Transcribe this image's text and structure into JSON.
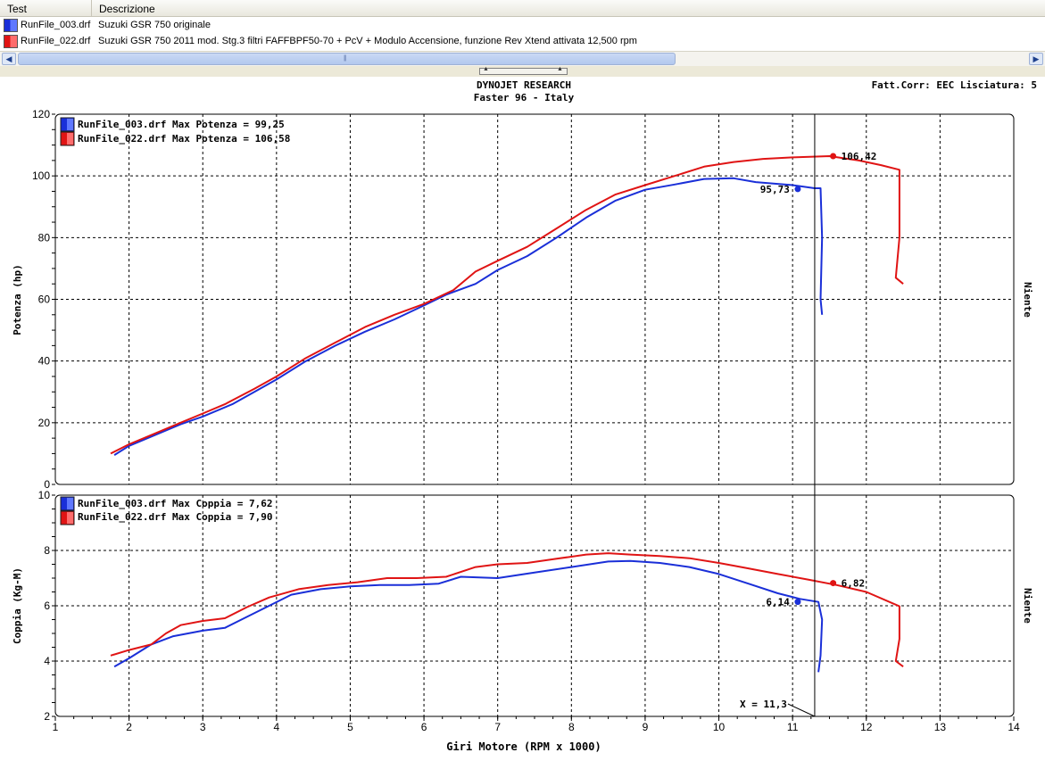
{
  "grid": {
    "columns": [
      "Test",
      "Descrizione"
    ],
    "rows": [
      {
        "file": "RunFile_003.drf",
        "description": "Suzuki GSR 750 originale",
        "color": "#1a2fd8"
      },
      {
        "file": "RunFile_022.drf",
        "description": "Suzuki GSR 750 2011 mod. Stg.3 filtri FAFFBPF50-70 + PcV + Modulo Accensione, funzione Rev Xtend attivata 12,500 rpm",
        "color": "#e01414"
      }
    ]
  },
  "header": {
    "title": "DYNOJET RESEARCH",
    "subtitle": "Faster 96 - Italy",
    "correction": "Fatt.Corr: EEC  Lisciatura: 5"
  },
  "chart_data": [
    {
      "type": "line",
      "ylabel": "Potenza (hp)",
      "right_label": "Niente",
      "xlim": [
        1,
        14
      ],
      "ylim": [
        0,
        120
      ],
      "yticks": [
        0,
        20,
        40,
        60,
        80,
        100,
        120
      ],
      "grid": true,
      "legend": "top-left",
      "legend_entries": [
        "RunFile_003.drf Max Potenza = 99,25",
        "RunFile_022.drf Max Potenza = 106,58"
      ],
      "series": [
        {
          "name": "RunFile_003.drf",
          "color": "#1a2fd8",
          "x": [
            1.8,
            2.0,
            2.3,
            2.7,
            3.0,
            3.4,
            3.7,
            4.0,
            4.4,
            4.8,
            5.2,
            5.6,
            6.0,
            6.3,
            6.7,
            7.0,
            7.4,
            7.8,
            8.2,
            8.6,
            9.0,
            9.4,
            9.8,
            10.2,
            10.5,
            11.0,
            11.3,
            11.38,
            11.4,
            11.38,
            11.4
          ],
          "y": [
            9.5,
            12.5,
            15.5,
            19.5,
            22,
            26,
            30,
            34,
            40,
            45,
            49.5,
            53.5,
            58,
            61.5,
            65,
            69.5,
            74,
            80,
            86.5,
            92,
            95.5,
            97.2,
            99,
            99.25,
            98,
            97,
            96,
            96,
            80,
            60,
            55
          ]
        },
        {
          "name": "RunFile_022.drf",
          "color": "#e01414",
          "x": [
            1.75,
            2.0,
            2.3,
            2.7,
            3.0,
            3.3,
            3.7,
            4.0,
            4.4,
            4.8,
            5.2,
            5.6,
            6.0,
            6.4,
            6.7,
            7.0,
            7.4,
            7.8,
            8.2,
            8.6,
            9.0,
            9.4,
            9.8,
            10.2,
            10.6,
            11.0,
            11.5,
            11.9,
            12.2,
            12.45,
            12.45,
            12.4,
            12.45,
            12.5
          ],
          "y": [
            10,
            13,
            16,
            20,
            23,
            26,
            31,
            35,
            41,
            46,
            51,
            55,
            58.5,
            63,
            69,
            72.5,
            77,
            83,
            89,
            94,
            97,
            100,
            103,
            104.5,
            105.5,
            106,
            106.42,
            105,
            103.5,
            102,
            80,
            67,
            66,
            65
          ]
        }
      ],
      "markers": [
        {
          "series": "RunFile_003.drf",
          "x": 11.07,
          "y": 95.73,
          "label": "95,73"
        },
        {
          "series": "RunFile_022.drf",
          "x": 11.55,
          "y": 106.42,
          "label": "106,42"
        }
      ]
    },
    {
      "type": "line",
      "xlabel": "Giri Motore (RPM x 1000)",
      "ylabel": "Coppia (Kg-M)",
      "right_label": "Niente",
      "xlim": [
        1,
        14
      ],
      "ylim": [
        2,
        10
      ],
      "xticks": [
        1,
        2,
        3,
        4,
        5,
        6,
        7,
        8,
        9,
        10,
        11,
        12,
        13,
        14
      ],
      "yticks": [
        2,
        4,
        6,
        8,
        10
      ],
      "grid": true,
      "legend": "top-left",
      "legend_entries": [
        "RunFile_003.drf Max Coppia = 7,62",
        "RunFile_022.drf Max Coppia = 7,90"
      ],
      "cursor": {
        "x": 11.3,
        "label": "X = 11,3"
      },
      "series": [
        {
          "name": "RunFile_003.drf",
          "color": "#1a2fd8",
          "x": [
            1.8,
            2.0,
            2.3,
            2.6,
            2.8,
            3.0,
            3.3,
            3.6,
            3.9,
            4.2,
            4.6,
            5.0,
            5.4,
            5.8,
            6.2,
            6.5,
            7.0,
            7.5,
            8.0,
            8.5,
            8.8,
            9.2,
            9.6,
            10.0,
            10.4,
            10.8,
            11.1,
            11.35,
            11.4,
            11.38,
            11.35
          ],
          "y": [
            3.8,
            4.1,
            4.6,
            4.9,
            5.0,
            5.1,
            5.2,
            5.6,
            6.0,
            6.4,
            6.6,
            6.7,
            6.75,
            6.75,
            6.8,
            7.05,
            7.0,
            7.2,
            7.4,
            7.6,
            7.62,
            7.55,
            7.4,
            7.15,
            6.8,
            6.45,
            6.25,
            6.14,
            5.5,
            4.2,
            3.6
          ]
        },
        {
          "name": "RunFile_022.drf",
          "color": "#e01414",
          "x": [
            1.75,
            2.0,
            2.3,
            2.5,
            2.7,
            3.0,
            3.3,
            3.6,
            3.9,
            4.3,
            4.7,
            5.1,
            5.5,
            5.9,
            6.3,
            6.7,
            7.0,
            7.4,
            7.8,
            8.2,
            8.5,
            8.8,
            9.2,
            9.6,
            10.0,
            10.4,
            10.8,
            11.2,
            11.6,
            12.0,
            12.45,
            12.45,
            12.4,
            12.5
          ],
          "y": [
            4.2,
            4.4,
            4.6,
            5.0,
            5.3,
            5.45,
            5.55,
            5.95,
            6.3,
            6.6,
            6.75,
            6.85,
            7.0,
            7.0,
            7.05,
            7.4,
            7.5,
            7.55,
            7.7,
            7.85,
            7.9,
            7.85,
            7.8,
            7.72,
            7.55,
            7.35,
            7.15,
            6.95,
            6.75,
            6.5,
            5.98,
            4.8,
            4.0,
            3.8
          ]
        }
      ],
      "markers": [
        {
          "series": "RunFile_003.drf",
          "x": 11.07,
          "y": 6.14,
          "label": "6,14"
        },
        {
          "series": "RunFile_022.drf",
          "x": 11.55,
          "y": 6.82,
          "label": "6,82"
        }
      ]
    }
  ]
}
